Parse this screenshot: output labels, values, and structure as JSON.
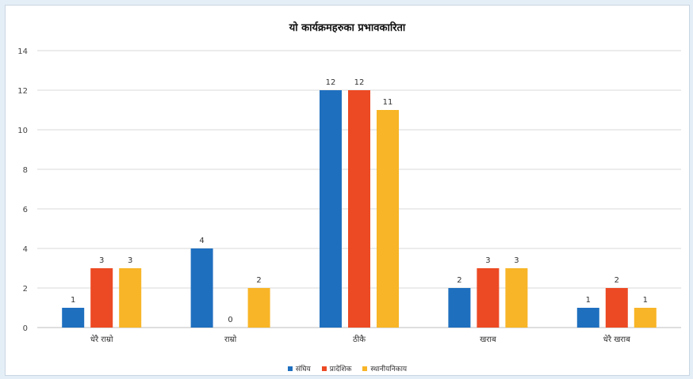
{
  "chart_data": {
    "type": "bar",
    "title": "यो कार्यक्रमहरुका प्रभावकारिता",
    "categories": [
      "धेरै राम्रो",
      "राम्रो",
      "ठीकै",
      "खराब",
      "धेरै खराब"
    ],
    "series": [
      {
        "name": "संघिय",
        "values": [
          1,
          4,
          12,
          2,
          1
        ],
        "color": "#1f6fbf"
      },
      {
        "name": "प्रादेशिक",
        "values": [
          3,
          0,
          12,
          3,
          2
        ],
        "color": "#ec4a24"
      },
      {
        "name": "स्थानीयनिकाय",
        "values": [
          3,
          2,
          11,
          3,
          1
        ],
        "color": "#f8b527"
      }
    ],
    "ylim": [
      0,
      14
    ],
    "yticks": [
      0,
      2,
      4,
      6,
      8,
      10,
      12,
      14
    ],
    "grid": true,
    "legend": "bottom",
    "data_labels": true
  }
}
